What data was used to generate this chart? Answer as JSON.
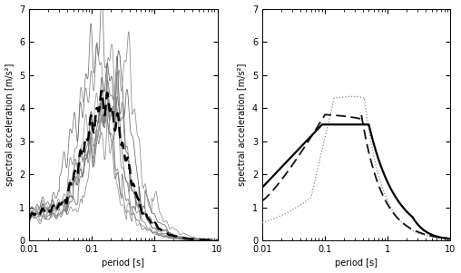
{
  "xlim": [
    0.01,
    10
  ],
  "ylim": [
    0,
    7
  ],
  "yticks": [
    0,
    1,
    2,
    3,
    4,
    5,
    6,
    7
  ],
  "xlabel": "period [s]",
  "ylabel": "spectral acceleration [m/s²]",
  "background_color": "#ffffff",
  "eq_params": [
    {
      "peak_T": 0.2,
      "peak_val": 6.5,
      "rise_T": 0.04,
      "base_val": 1.35,
      "gray": 0.55
    },
    {
      "peak_T": 0.25,
      "peak_val": 4.5,
      "rise_T": 0.05,
      "base_val": 1.45,
      "gray": 0.45
    },
    {
      "peak_T": 0.18,
      "peak_val": 4.2,
      "rise_T": 0.04,
      "base_val": 1.3,
      "gray": 0.6
    },
    {
      "peak_T": 0.28,
      "peak_val": 5.1,
      "rise_T": 0.05,
      "base_val": 1.4,
      "gray": 0.35
    },
    {
      "peak_T": 0.22,
      "peak_val": 3.7,
      "rise_T": 0.04,
      "base_val": 1.2,
      "gray": 0.5
    },
    {
      "peak_T": 0.35,
      "peak_val": 4.8,
      "rise_T": 0.06,
      "base_val": 1.35,
      "gray": 0.4
    },
    {
      "peak_T": 0.15,
      "peak_val": 6.3,
      "rise_T": 0.03,
      "base_val": 1.5,
      "gray": 0.45
    },
    {
      "peak_T": 0.45,
      "peak_val": 5.1,
      "rise_T": 0.07,
      "base_val": 1.3,
      "gray": 0.55
    },
    {
      "peak_T": 0.3,
      "peak_val": 4.3,
      "rise_T": 0.05,
      "base_val": 1.55,
      "gray": 0.5
    }
  ],
  "solid": {
    "T_a": 0.01,
    "T_b": 0.09,
    "T_c": 0.5,
    "T_d": 2.5,
    "Sa_a": 1.6,
    "Sa_p": 3.5,
    "decay_exp": 1.0,
    "decay2_exp": 2.0
  },
  "dashed": {
    "T_b": 0.1,
    "T_c": 0.38,
    "Sa_a": 1.2,
    "Sa_p": 3.8,
    "decay_exp": 1.3
  },
  "dotted": {
    "T_lo": 0.06,
    "T_hi": 0.14,
    "T_peak": 0.3,
    "T_end": 0.42,
    "Sa_lo": 1.3,
    "Sa_hi": 4.3,
    "Sa_peak": 4.35,
    "decay_exp": 1.5
  }
}
